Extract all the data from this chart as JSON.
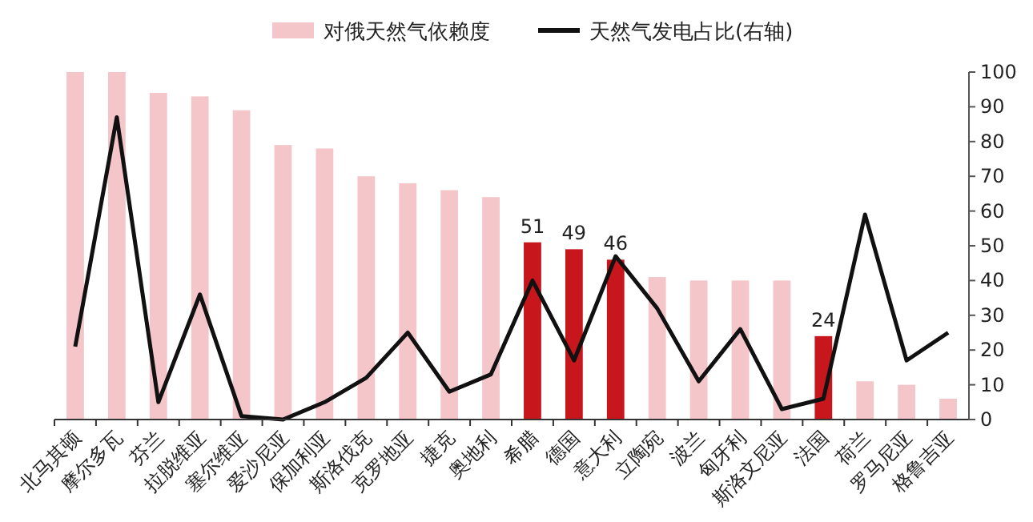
{
  "chart_data": {
    "type": "bar",
    "categories": [
      "北马其顿",
      "摩尔多瓦",
      "芬兰",
      "拉脱维亚",
      "塞尔维亚",
      "爱沙尼亚",
      "保加利亚",
      "斯洛伐克",
      "克罗地亚",
      "捷克",
      "奥地利",
      "希腊",
      "德国",
      "意大利",
      "立陶宛",
      "波兰",
      "匈牙利",
      "斯洛文尼亚",
      "法国",
      "荷兰",
      "罗马尼亚",
      "格鲁吉亚"
    ],
    "ylim": [
      0,
      100
    ],
    "y2lim": [
      0,
      100
    ],
    "y2ticks": [
      0,
      10,
      20,
      30,
      40,
      50,
      60,
      70,
      80,
      90,
      100
    ],
    "legend": "top",
    "series": [
      {
        "name": "对俄天然气依赖度",
        "values": [
          100,
          100,
          94,
          93,
          89,
          79,
          78,
          70,
          68,
          66,
          64,
          51,
          49,
          46,
          41,
          40,
          40,
          40,
          24,
          11,
          10,
          6
        ],
        "colors": [
          "#f4c6ca",
          "#f4c6ca",
          "#f4c6ca",
          "#f4c6ca",
          "#f4c6ca",
          "#f4c6ca",
          "#f4c6ca",
          "#f4c6ca",
          "#f4c6ca",
          "#f4c6ca",
          "#f4c6ca",
          "#c8161d",
          "#c8161d",
          "#c8161d",
          "#f4c6ca",
          "#f4c6ca",
          "#f4c6ca",
          "#f4c6ca",
          "#c8161d",
          "#f4c6ca",
          "#f4c6ca",
          "#f4c6ca"
        ],
        "value_labels": [
          null,
          null,
          null,
          null,
          null,
          null,
          null,
          null,
          null,
          null,
          null,
          "51",
          "49",
          "46",
          null,
          null,
          null,
          null,
          "24",
          null,
          null,
          null
        ]
      },
      {
        "name": "天然气发电占比(右轴)",
        "type": "line",
        "axis": "y2",
        "color": "#111111",
        "values": [
          21,
          87,
          5,
          36,
          1,
          0,
          5,
          12,
          25,
          8,
          13,
          40,
          17,
          47,
          32,
          11,
          26,
          3,
          6,
          59,
          17,
          25
        ]
      }
    ]
  }
}
